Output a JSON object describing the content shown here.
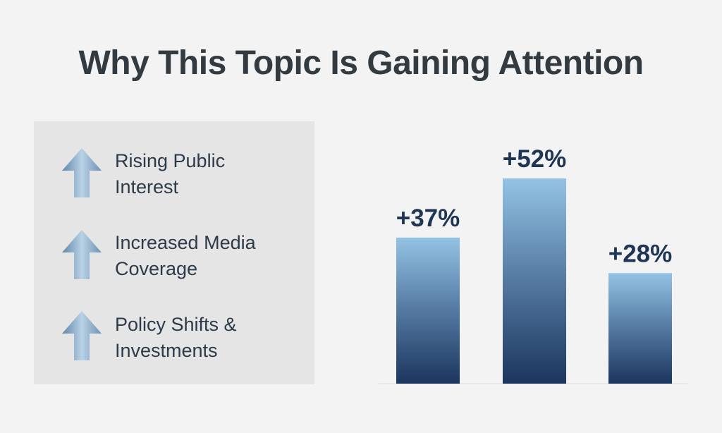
{
  "chart_data": {
    "type": "bar",
    "title": "Why This Topic Is Gaining Attention",
    "values": [
      37,
      52,
      28
    ],
    "value_labels": [
      "+37%",
      "+52%",
      "+28%"
    ]
  },
  "highlights": [
    "Rising Public Interest",
    "Increased Media Coverage",
    "Policy Shifts & Investments"
  ]
}
